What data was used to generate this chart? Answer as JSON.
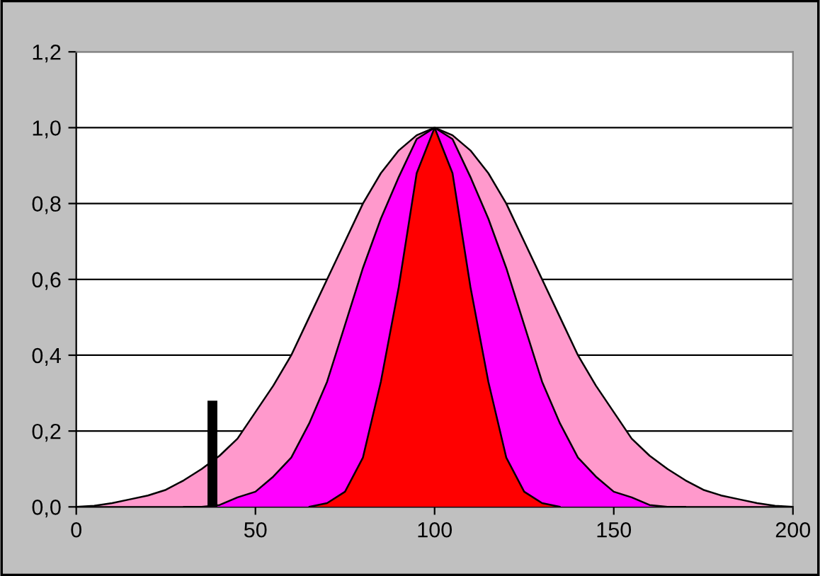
{
  "chart_data": {
    "type": "area",
    "series": [
      {
        "color": "#ff99cc",
        "x": [
          0,
          5,
          10,
          15,
          20,
          25,
          30,
          35,
          40,
          45,
          50,
          55,
          60,
          65,
          70,
          75,
          80,
          85,
          90,
          95,
          100,
          105,
          110,
          115,
          120,
          125,
          130,
          135,
          140,
          145,
          150,
          155,
          160,
          165,
          170,
          175,
          180,
          185,
          190,
          195,
          200
        ],
        "values": [
          0,
          0.003,
          0.01,
          0.02,
          0.03,
          0.045,
          0.07,
          0.1,
          0.135,
          0.18,
          0.25,
          0.32,
          0.4,
          0.5,
          0.6,
          0.7,
          0.8,
          0.88,
          0.94,
          0.98,
          1.0,
          0.98,
          0.94,
          0.88,
          0.8,
          0.7,
          0.6,
          0.5,
          0.4,
          0.32,
          0.25,
          0.18,
          0.135,
          0.1,
          0.07,
          0.045,
          0.03,
          0.02,
          0.01,
          0.003,
          0
        ]
      },
      {
        "color": "#ff00ff",
        "x": [
          30,
          35,
          40,
          45,
          50,
          55,
          60,
          65,
          70,
          75,
          80,
          85,
          90,
          95,
          100,
          105,
          110,
          115,
          120,
          125,
          130,
          135,
          140,
          145,
          150,
          155,
          160,
          165,
          170
        ],
        "values": [
          0,
          0,
          0.005,
          0.025,
          0.04,
          0.08,
          0.13,
          0.22,
          0.33,
          0.48,
          0.63,
          0.76,
          0.87,
          0.97,
          1.0,
          0.97,
          0.87,
          0.76,
          0.63,
          0.48,
          0.33,
          0.22,
          0.13,
          0.08,
          0.04,
          0.025,
          0.005,
          0,
          0
        ]
      },
      {
        "color": "#ff0000",
        "x": [
          65,
          70,
          75,
          80,
          85,
          90,
          95,
          100,
          105,
          110,
          115,
          120,
          125,
          130,
          135
        ],
        "values": [
          0,
          0.01,
          0.04,
          0.13,
          0.33,
          0.58,
          0.88,
          1.0,
          0.88,
          0.58,
          0.33,
          0.13,
          0.04,
          0.01,
          0
        ]
      },
      {
        "type": "line",
        "color": "#000000",
        "x": [
          38,
          38
        ],
        "values": [
          0,
          0.28
        ]
      }
    ],
    "xlim": [
      0,
      200
    ],
    "xticks": [
      0,
      50,
      100,
      150,
      200
    ],
    "ylim": [
      0,
      1.2
    ],
    "yticks": [
      {
        "value": 0,
        "label": "0,0"
      },
      {
        "value": 0.2,
        "label": "0,2"
      },
      {
        "value": 0.4,
        "label": "0,4"
      },
      {
        "value": 0.6,
        "label": "0,6"
      },
      {
        "value": 0.8,
        "label": "0,8"
      },
      {
        "value": 1.0,
        "label": "1,0"
      },
      {
        "value": 1.2,
        "label": "1,2"
      }
    ],
    "grid": "y",
    "legend": false
  }
}
